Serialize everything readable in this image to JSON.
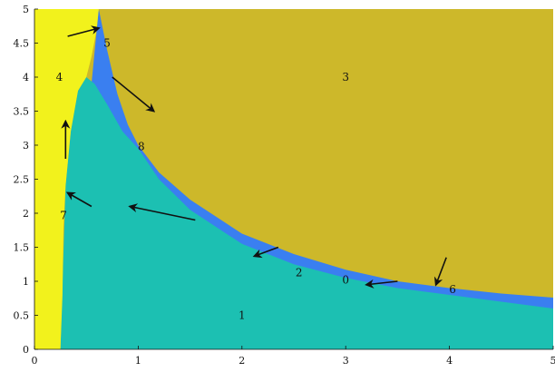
{
  "colors": {
    "region_left": "#f2f21c",
    "region_top": "#cdb82a",
    "region_band": "#3a7ff0",
    "region_bottom": "#1cc0b2",
    "axes": "#111111",
    "arrows": "#111111"
  },
  "chart_data": {
    "type": "region-plot",
    "xlim": [
      0,
      5
    ],
    "ylim": [
      0,
      5
    ],
    "x_ticks": [
      "0",
      "1",
      "2",
      "3",
      "4",
      "5"
    ],
    "y_ticks": [
      "0",
      "0.5",
      "1",
      "1.5",
      "2",
      "2.5",
      "3",
      "3.5",
      "4",
      "4.5",
      "5"
    ],
    "grid": false,
    "boundaries": {
      "left_region_right_edge": [
        {
          "x": 0.25,
          "y": 0.0
        },
        {
          "x": 0.27,
          "y": 0.8
        },
        {
          "x": 0.28,
          "y": 1.8
        },
        {
          "x": 0.3,
          "y": 2.4
        },
        {
          "x": 0.35,
          "y": 3.2
        },
        {
          "x": 0.42,
          "y": 3.8
        },
        {
          "x": 0.5,
          "y": 4.0
        },
        {
          "x": 0.55,
          "y": 4.3
        },
        {
          "x": 0.6,
          "y": 4.7
        },
        {
          "x": 0.62,
          "y": 5.0
        }
      ],
      "top_region_lower_edge": [
        {
          "x": 0.62,
          "y": 5.0
        },
        {
          "x": 0.7,
          "y": 4.4
        },
        {
          "x": 0.8,
          "y": 3.75
        },
        {
          "x": 0.9,
          "y": 3.3
        },
        {
          "x": 1.0,
          "y": 3.0
        },
        {
          "x": 1.2,
          "y": 2.6
        },
        {
          "x": 1.5,
          "y": 2.2
        },
        {
          "x": 2.0,
          "y": 1.7
        },
        {
          "x": 2.5,
          "y": 1.4
        },
        {
          "x": 3.0,
          "y": 1.17
        },
        {
          "x": 3.5,
          "y": 1.0
        },
        {
          "x": 4.0,
          "y": 0.9
        },
        {
          "x": 4.5,
          "y": 0.82
        },
        {
          "x": 5.0,
          "y": 0.76
        }
      ],
      "bottom_region_upper_edge": [
        {
          "x": 0.3,
          "y": 2.4
        },
        {
          "x": 0.35,
          "y": 3.2
        },
        {
          "x": 0.42,
          "y": 3.8
        },
        {
          "x": 0.5,
          "y": 4.0
        },
        {
          "x": 0.58,
          "y": 3.9
        },
        {
          "x": 0.7,
          "y": 3.6
        },
        {
          "x": 0.85,
          "y": 3.2
        },
        {
          "x": 1.0,
          "y": 2.95
        },
        {
          "x": 1.2,
          "y": 2.5
        },
        {
          "x": 1.5,
          "y": 2.05
        },
        {
          "x": 2.0,
          "y": 1.55
        },
        {
          "x": 2.5,
          "y": 1.25
        },
        {
          "x": 3.0,
          "y": 1.05
        },
        {
          "x": 3.5,
          "y": 0.9
        },
        {
          "x": 4.0,
          "y": 0.8
        },
        {
          "x": 4.5,
          "y": 0.7
        },
        {
          "x": 5.0,
          "y": 0.6
        }
      ]
    },
    "region_labels": [
      {
        "text": "1",
        "x": 2.0,
        "y": 0.5
      },
      {
        "text": "2",
        "x": 2.55,
        "y": 1.13
      },
      {
        "text": "0",
        "x": 3.0,
        "y": 1.02
      },
      {
        "text": "3",
        "x": 3.0,
        "y": 4.0
      },
      {
        "text": "4",
        "x": 0.24,
        "y": 4.0
      },
      {
        "text": "5",
        "x": 0.7,
        "y": 4.5
      },
      {
        "text": "6",
        "x": 4.03,
        "y": 0.88
      },
      {
        "text": "7",
        "x": 0.28,
        "y": 1.97
      },
      {
        "text": "8",
        "x": 1.03,
        "y": 2.98
      }
    ],
    "arrows": [
      {
        "from": [
          0.32,
          4.6
        ],
        "to": [
          0.62,
          4.72
        ]
      },
      {
        "from": [
          0.75,
          4.0
        ],
        "to": [
          1.15,
          3.5
        ]
      },
      {
        "from": [
          0.3,
          2.8
        ],
        "to": [
          0.3,
          3.35
        ]
      },
      {
        "from": [
          0.55,
          2.1
        ],
        "to": [
          0.32,
          2.3
        ]
      },
      {
        "from": [
          1.55,
          1.9
        ],
        "to": [
          0.92,
          2.1
        ]
      },
      {
        "from": [
          2.35,
          1.5
        ],
        "to": [
          2.12,
          1.37
        ]
      },
      {
        "from": [
          3.5,
          1.0
        ],
        "to": [
          3.2,
          0.95
        ]
      },
      {
        "from": [
          3.97,
          1.35
        ],
        "to": [
          3.87,
          0.95
        ]
      }
    ]
  }
}
